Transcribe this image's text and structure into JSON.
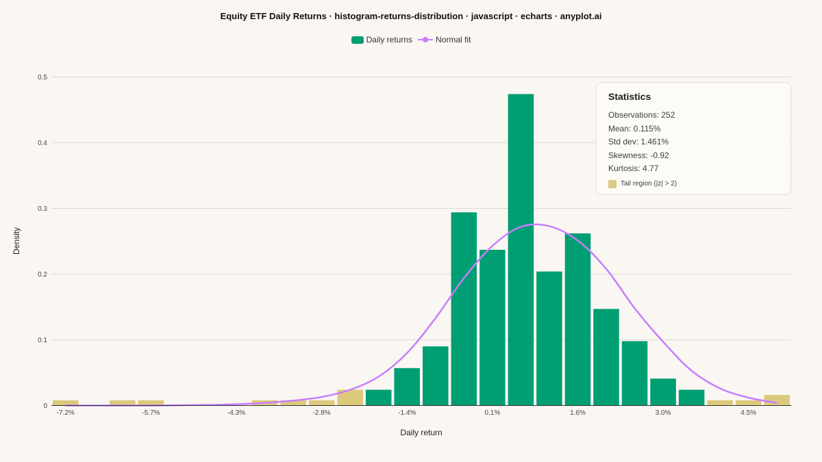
{
  "title": "Equity ETF Daily Returns · histogram-returns-distribution · javascript · echarts · anyplot.ai",
  "colors": {
    "bar": "#009e73",
    "tail": "#dcc97c",
    "line": "#c77dff",
    "grid": "#dedbd3",
    "axis": "#333333"
  },
  "legend": [
    {
      "label": "Daily returns",
      "icon": "bar-swatch"
    },
    {
      "label": "Normal fit",
      "icon": "line-marker"
    }
  ],
  "stats": {
    "title": "Statistics",
    "lines": [
      "Observations: 252",
      "Mean: 0.115%",
      "Std dev: 1.461%",
      "Skewness: -0.92",
      "Kurtosis: 4.77"
    ],
    "tail_label": "Tail region (|z| > 2)"
  },
  "chart_data": {
    "type": "bar",
    "title": "Equity ETF Daily Returns · histogram-returns-distribution · javascript · echarts · anyplot.ai",
    "xlabel": "Daily return",
    "ylabel": "Density",
    "ylim": [
      0,
      0.5
    ],
    "yticks": [
      "0",
      "0.1",
      "0.2",
      "0.3",
      "0.4",
      "0.5"
    ],
    "xtick_labels": [
      "-7.2%",
      "-5.7%",
      "-4.3%",
      "-2.8%",
      "-1.4%",
      "0.1%",
      "1.6%",
      "3.0%",
      "4.5%"
    ],
    "grid": true,
    "legend_position": "top-center",
    "series": [
      {
        "name": "Daily returns",
        "type": "bar",
        "values": [
          0.008,
          0,
          0.008,
          0.008,
          0,
          0,
          0,
          0.008,
          0.008,
          0.008,
          0.024,
          0.024,
          0.057,
          0.09,
          0.294,
          0.237,
          0.474,
          0.204,
          0.262,
          0.147,
          0.098,
          0.041,
          0.024,
          0.008,
          0.008,
          0.016
        ],
        "tail": [
          true,
          true,
          true,
          true,
          true,
          true,
          true,
          true,
          true,
          true,
          true,
          false,
          false,
          false,
          false,
          false,
          false,
          false,
          false,
          false,
          false,
          false,
          false,
          true,
          true,
          true
        ]
      },
      {
        "name": "Normal fit",
        "type": "line",
        "values": [
          0.0,
          0.0,
          0.0,
          0.0,
          0.0005,
          0.001,
          0.002,
          0.004,
          0.0075,
          0.013,
          0.024,
          0.044,
          0.08,
          0.133,
          0.194,
          0.243,
          0.272,
          0.273,
          0.251,
          0.208,
          0.148,
          0.097,
          0.053,
          0.026,
          0.012,
          0.004
        ]
      }
    ]
  }
}
